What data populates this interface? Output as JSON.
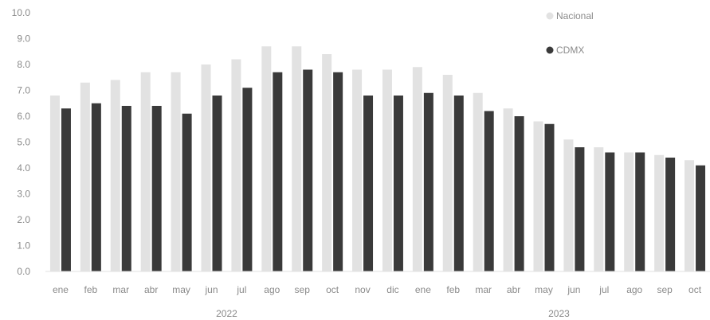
{
  "chart_data": {
    "type": "bar",
    "categories": [
      "ene",
      "feb",
      "mar",
      "abr",
      "may",
      "jun",
      "jul",
      "ago",
      "sep",
      "oct",
      "nov",
      "dic",
      "ene",
      "feb",
      "mar",
      "abr",
      "may",
      "jun",
      "jul",
      "ago",
      "sep",
      "oct"
    ],
    "year_groups": [
      {
        "label": "2022",
        "from_index": 0,
        "to_index": 11
      },
      {
        "label": "2023",
        "from_index": 12,
        "to_index": 21
      }
    ],
    "series": [
      {
        "name": "Nacional",
        "color": "#e2e2e2",
        "values": [
          6.8,
          7.3,
          7.4,
          7.7,
          7.7,
          8.0,
          8.2,
          8.7,
          8.7,
          8.4,
          7.8,
          7.8,
          7.9,
          7.6,
          6.9,
          6.3,
          5.8,
          5.1,
          4.8,
          4.6,
          4.5,
          4.3
        ]
      },
      {
        "name": "CDMX",
        "color": "#3a3a3a",
        "values": [
          6.3,
          6.5,
          6.4,
          6.4,
          6.1,
          6.8,
          7.1,
          7.7,
          7.8,
          7.7,
          6.8,
          6.8,
          6.9,
          6.8,
          6.2,
          6.0,
          5.7,
          4.8,
          4.6,
          4.6,
          4.4,
          4.1
        ]
      }
    ],
    "y_ticks": [
      "0.0",
      "1.0",
      "2.0",
      "3.0",
      "4.0",
      "5.0",
      "6.0",
      "7.0",
      "8.0",
      "9.0",
      "10.0"
    ],
    "ylim": [
      0,
      10
    ],
    "legend_position": "top-right",
    "grid": false,
    "title": "",
    "xlabel": "",
    "ylabel": ""
  }
}
